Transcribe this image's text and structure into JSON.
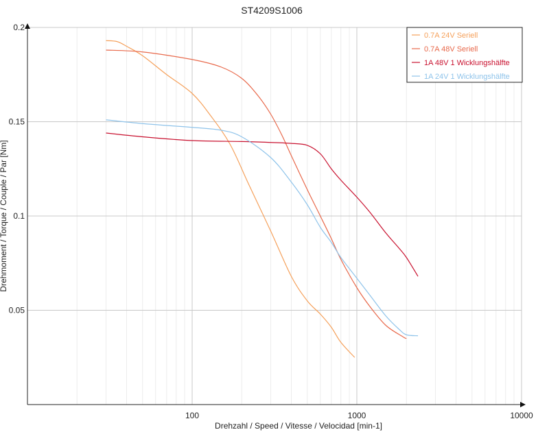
{
  "chart_data": {
    "type": "line",
    "title": "ST4209S1006",
    "xlabel": "Drehzahl / Speed / Vitesse / Velocidad [min-1]",
    "ylabel": "Drehmoment / Torque / Couple / Par [Nm]",
    "x_scale": "log",
    "xlim": [
      10,
      10000
    ],
    "ylim": [
      0,
      0.2
    ],
    "x_ticks": [
      {
        "value": 100,
        "label": "100"
      },
      {
        "value": 1000,
        "label": "1000"
      },
      {
        "value": 10000,
        "label": "10000"
      }
    ],
    "y_ticks": [
      {
        "value": 0.05,
        "label": "0.05"
      },
      {
        "value": 0.1,
        "label": "0.1"
      },
      {
        "value": 0.15,
        "label": "0.15"
      },
      {
        "value": 0.2,
        "label": "0.2"
      }
    ],
    "grid": true,
    "legend_position": "top-right",
    "series": [
      {
        "name": "0.7A  24V  Seriell",
        "color": "#f5a05a",
        "points": [
          [
            30,
            0.193
          ],
          [
            35,
            0.1925
          ],
          [
            40,
            0.19
          ],
          [
            50,
            0.185
          ],
          [
            70,
            0.175
          ],
          [
            100,
            0.165
          ],
          [
            130,
            0.153
          ],
          [
            170,
            0.138
          ],
          [
            220,
            0.117
          ],
          [
            300,
            0.092
          ],
          [
            400,
            0.068
          ],
          [
            500,
            0.055
          ],
          [
            600,
            0.048
          ],
          [
            700,
            0.041
          ],
          [
            800,
            0.033
          ],
          [
            970,
            0.025
          ]
        ]
      },
      {
        "name": "0.7A  48V  Seriell",
        "color": "#e8684a",
        "points": [
          [
            30,
            0.188
          ],
          [
            50,
            0.187
          ],
          [
            100,
            0.183
          ],
          [
            150,
            0.179
          ],
          [
            200,
            0.173
          ],
          [
            250,
            0.164
          ],
          [
            300,
            0.154
          ],
          [
            350,
            0.143
          ],
          [
            400,
            0.132
          ],
          [
            500,
            0.114
          ],
          [
            600,
            0.1
          ],
          [
            700,
            0.088
          ],
          [
            800,
            0.077
          ],
          [
            1000,
            0.062
          ],
          [
            1200,
            0.052
          ],
          [
            1500,
            0.042
          ],
          [
            1900,
            0.036
          ],
          [
            2000,
            0.035
          ]
        ]
      },
      {
        "name": "1A  48V  1 Wicklungshälfte",
        "color": "#c8102e",
        "points": [
          [
            30,
            0.144
          ],
          [
            50,
            0.142
          ],
          [
            100,
            0.14
          ],
          [
            200,
            0.1395
          ],
          [
            300,
            0.139
          ],
          [
            400,
            0.1385
          ],
          [
            500,
            0.1375
          ],
          [
            600,
            0.133
          ],
          [
            700,
            0.125
          ],
          [
            800,
            0.119
          ],
          [
            1000,
            0.11
          ],
          [
            1200,
            0.102
          ],
          [
            1500,
            0.091
          ],
          [
            1800,
            0.083
          ],
          [
            2000,
            0.078
          ],
          [
            2350,
            0.068
          ]
        ]
      },
      {
        "name": "1A  24V  1 Wicklungshälfte",
        "color": "#8ec3ea",
        "points": [
          [
            30,
            0.151
          ],
          [
            50,
            0.149
          ],
          [
            100,
            0.147
          ],
          [
            150,
            0.1455
          ],
          [
            200,
            0.142
          ],
          [
            300,
            0.131
          ],
          [
            400,
            0.118
          ],
          [
            500,
            0.106
          ],
          [
            600,
            0.094
          ],
          [
            700,
            0.086
          ],
          [
            800,
            0.078
          ],
          [
            1000,
            0.067
          ],
          [
            1200,
            0.058
          ],
          [
            1500,
            0.047
          ],
          [
            1800,
            0.04
          ],
          [
            2000,
            0.037
          ],
          [
            2350,
            0.0365
          ]
        ]
      }
    ]
  }
}
